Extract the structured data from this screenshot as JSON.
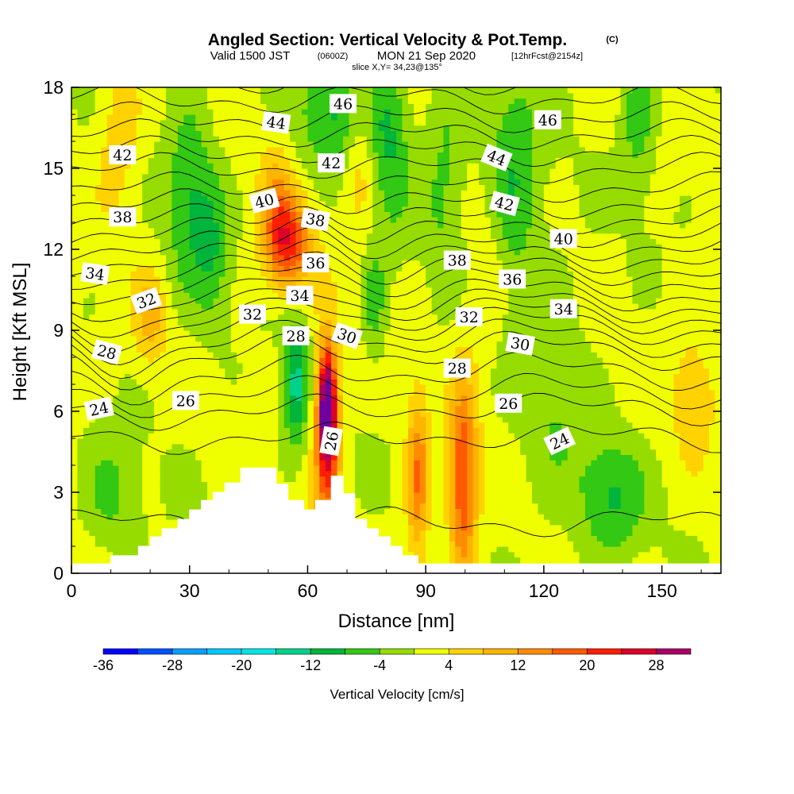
{
  "title": {
    "main": "Angled Section: Vertical Velocity & Pot.Temp.",
    "unit": "(C)",
    "valid_prefix": "Valid 1500 JST",
    "utc": "(0600Z)",
    "date": "MON 21 Sep 2020",
    "forecast": "[12hrFcst@2154z]",
    "slice": "slice X,Y= 34,23@135°"
  },
  "chart_data": {
    "type": "heatmap",
    "xlabel": "Distance [nm]",
    "ylabel": "Height [Kft MSL]",
    "xlim": [
      0,
      165
    ],
    "ylim": [
      0,
      18
    ],
    "x_ticks": [
      0,
      30,
      60,
      90,
      120,
      150
    ],
    "y_ticks": [
      0,
      3,
      6,
      9,
      12,
      15,
      18
    ],
    "terrain": {
      "x": [
        0,
        10,
        10,
        17,
        17,
        20,
        20,
        23,
        23,
        27,
        27,
        30,
        30,
        33,
        33,
        36,
        36,
        39,
        39,
        43,
        43,
        52,
        52,
        55,
        55,
        59,
        59,
        62,
        62,
        66,
        66,
        69,
        69,
        72,
        72,
        75,
        75,
        78,
        78,
        81,
        81,
        84,
        84,
        88,
        88,
        165
      ],
      "y": [
        0.35,
        0.35,
        0.65,
        0.65,
        1.0,
        1.0,
        1.35,
        1.35,
        1.65,
        1.65,
        2.0,
        2.0,
        2.35,
        2.35,
        2.7,
        2.7,
        3.0,
        3.0,
        3.35,
        3.35,
        3.9,
        3.9,
        3.3,
        3.3,
        2.7,
        2.7,
        2.35,
        2.35,
        2.7,
        2.7,
        3.6,
        3.6,
        2.95,
        2.95,
        2.0,
        2.0,
        1.65,
        1.65,
        1.35,
        1.35,
        1.0,
        1.0,
        0.65,
        0.65,
        0.35,
        0.35
      ]
    },
    "field_features": [
      {
        "kind": "updraft",
        "x": 65,
        "y": 6.2,
        "sx": 1.6,
        "sy": 1.5,
        "amp": 32
      },
      {
        "kind": "updraft",
        "x": 65,
        "y": 4.5,
        "sx": 2.5,
        "sy": 2.8,
        "amp": 14
      },
      {
        "kind": "updraft",
        "x": 55,
        "y": 12.2,
        "sx": 4.0,
        "sy": 1.2,
        "amp": 20
      },
      {
        "kind": "updraft",
        "x": 52,
        "y": 13.8,
        "sx": 3.0,
        "sy": 1.5,
        "amp": 8
      },
      {
        "kind": "updraft",
        "x": 88,
        "y": 3.5,
        "sx": 2.0,
        "sy": 2.2,
        "amp": 15
      },
      {
        "kind": "updraft",
        "x": 99.5,
        "y": 3.4,
        "sx": 2.5,
        "sy": 2.5,
        "amp": 20
      },
      {
        "kind": "updraft",
        "x": 73,
        "y": 16,
        "sx": 3.0,
        "sy": 2.0,
        "amp": 8
      },
      {
        "kind": "updraft",
        "x": 20,
        "y": 9.5,
        "sx": 3.0,
        "sy": 1.2,
        "amp": 8
      },
      {
        "kind": "updraft",
        "x": 12,
        "y": 16,
        "sx": 4.0,
        "sy": 2.0,
        "amp": 6
      },
      {
        "kind": "updraft",
        "x": 158,
        "y": 7,
        "sx": 5.0,
        "sy": 2.0,
        "amp": 5
      },
      {
        "kind": "updraft",
        "x": 105,
        "y": 11,
        "sx": 4.0,
        "sy": 2.0,
        "amp": 5
      },
      {
        "kind": "downdraft",
        "x": 57,
        "y": 7.0,
        "sx": 2.2,
        "sy": 1.6,
        "amp": 14
      },
      {
        "kind": "downdraft",
        "x": 30,
        "y": 14,
        "sx": 4.0,
        "sy": 2.5,
        "amp": 9
      },
      {
        "kind": "downdraft",
        "x": 36,
        "y": 12,
        "sx": 3.0,
        "sy": 2.0,
        "amp": 7
      },
      {
        "kind": "downdraft",
        "x": 68,
        "y": 17,
        "sx": 7.0,
        "sy": 1.5,
        "amp": 10
      },
      {
        "kind": "downdraft",
        "x": 81,
        "y": 16,
        "sx": 3.5,
        "sy": 2.5,
        "amp": 8
      },
      {
        "kind": "downdraft",
        "x": 112,
        "y": 14.5,
        "sx": 5.0,
        "sy": 3.0,
        "amp": 9
      },
      {
        "kind": "downdraft",
        "x": 95,
        "y": 15,
        "sx": 4.0,
        "sy": 3.0,
        "amp": 6
      },
      {
        "kind": "downdraft",
        "x": 137,
        "y": 2.8,
        "sx": 6.0,
        "sy": 1.5,
        "amp": 9
      },
      {
        "kind": "downdraft",
        "x": 122,
        "y": 7,
        "sx": 6.0,
        "sy": 3.0,
        "amp": 5
      },
      {
        "kind": "downdraft",
        "x": 77,
        "y": 10,
        "sx": 2.0,
        "sy": 1.5,
        "amp": 7
      },
      {
        "kind": "downdraft",
        "x": 10,
        "y": 2.8,
        "sx": 5.0,
        "sy": 1.5,
        "amp": 6
      },
      {
        "kind": "downdraft",
        "x": 144,
        "y": 17,
        "sx": 3.0,
        "sy": 2.0,
        "amp": 7
      }
    ],
    "theta_levels": [
      22,
      23,
      24,
      25,
      26,
      27,
      28,
      29,
      30,
      31,
      32,
      33,
      34,
      35,
      36,
      37,
      38,
      39,
      40,
      41,
      42,
      43,
      44,
      45,
      46,
      47
    ],
    "theta_profile": {
      "height_kft": [
        0,
        3,
        5,
        6,
        7,
        8,
        9,
        10,
        11,
        12,
        13,
        14,
        15,
        16,
        17,
        18
      ],
      "theta_c": [
        22.5,
        23.3,
        24.0,
        25.0,
        26.6,
        27.9,
        30.0,
        32.5,
        34.6,
        36.8,
        38.8,
        40.6,
        42.0,
        43.6,
        45.2,
        46.6
      ]
    },
    "contour_labels": [
      {
        "text": "46",
        "x": 69,
        "y": 17.4,
        "angle": 0
      },
      {
        "text": "46",
        "x": 121,
        "y": 16.8,
        "angle": 0
      },
      {
        "text": "44",
        "x": 52,
        "y": 16.7,
        "angle": 8
      },
      {
        "text": "44",
        "x": 108,
        "y": 15.4,
        "angle": 22
      },
      {
        "text": "42",
        "x": 13,
        "y": 15.5,
        "angle": 0
      },
      {
        "text": "42",
        "x": 66,
        "y": 15.2,
        "angle": 0
      },
      {
        "text": "42",
        "x": 110,
        "y": 13.7,
        "angle": 15
      },
      {
        "text": "40",
        "x": 49,
        "y": 13.8,
        "angle": -15
      },
      {
        "text": "40",
        "x": 125,
        "y": 12.4,
        "angle": 0
      },
      {
        "text": "38",
        "x": 13,
        "y": 13.2,
        "angle": 0
      },
      {
        "text": "38",
        "x": 62,
        "y": 13.1,
        "angle": 10
      },
      {
        "text": "38",
        "x": 98,
        "y": 11.6,
        "angle": 0
      },
      {
        "text": "36",
        "x": 62,
        "y": 11.5,
        "angle": 0
      },
      {
        "text": "36",
        "x": 112,
        "y": 10.9,
        "angle": 0
      },
      {
        "text": "34",
        "x": 6,
        "y": 11.1,
        "angle": 8
      },
      {
        "text": "34",
        "x": 58,
        "y": 10.3,
        "angle": 0
      },
      {
        "text": "34",
        "x": 125,
        "y": 9.8,
        "angle": 0
      },
      {
        "text": "32",
        "x": 19,
        "y": 10.1,
        "angle": -20
      },
      {
        "text": "32",
        "x": 46,
        "y": 9.6,
        "angle": 0
      },
      {
        "text": "32",
        "x": 101,
        "y": 9.5,
        "angle": 0
      },
      {
        "text": "30",
        "x": 70,
        "y": 8.8,
        "angle": 20
      },
      {
        "text": "30",
        "x": 114,
        "y": 8.5,
        "angle": 10
      },
      {
        "text": "28",
        "x": 9,
        "y": 8.2,
        "angle": 15
      },
      {
        "text": "28",
        "x": 57,
        "y": 8.8,
        "angle": 0
      },
      {
        "text": "28",
        "x": 98,
        "y": 7.6,
        "angle": 0
      },
      {
        "text": "26",
        "x": 29,
        "y": 6.4,
        "angle": 0
      },
      {
        "text": "26",
        "x": 66,
        "y": 4.9,
        "angle": -80
      },
      {
        "text": "26",
        "x": 111,
        "y": 6.3,
        "angle": 0
      },
      {
        "text": "24",
        "x": 7,
        "y": 6.1,
        "angle": -12
      },
      {
        "text": "24",
        "x": 124,
        "y": 4.9,
        "angle": -25
      }
    ],
    "colorbar": {
      "label": "Vertical Velocity [cm/s]",
      "bounds": [
        -36,
        -32,
        -28,
        -24,
        -20,
        -16,
        -12,
        -8,
        -4,
        0,
        4,
        8,
        12,
        16,
        20,
        24,
        28,
        32
      ],
      "colors": [
        "#0000ff",
        "#0050ff",
        "#00a0ff",
        "#00c8ff",
        "#00e6e6",
        "#00d28c",
        "#00b43c",
        "#32c814",
        "#96dc00",
        "#f0ff00",
        "#ffd200",
        "#ffb400",
        "#ff8c00",
        "#ff5a00",
        "#ff1e00",
        "#dc0028",
        "#aa0064",
        "#6e00a0"
      ],
      "tick_labels": [
        "-36",
        "-28",
        "-20",
        "-12",
        "-4",
        "4",
        "12",
        "20",
        "28"
      ]
    }
  }
}
